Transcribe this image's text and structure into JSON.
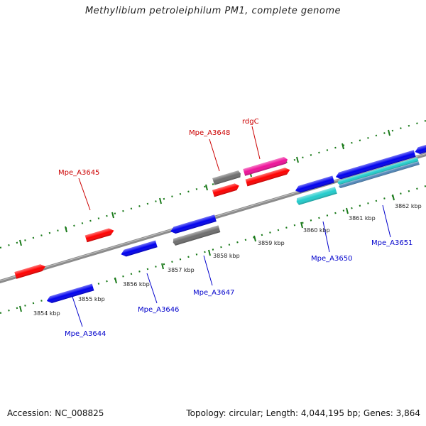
{
  "title": "Methylibium petroleiphilum PM1, complete genome",
  "footer": {
    "accession": "Accession: NC_008825",
    "topology": "Topology: circular; Length: 4,044,195 bp; Genes: 3,864"
  },
  "colors": {
    "backbone": "#8c8c8c",
    "forward_label": "#cc0000",
    "reverse_label": "#0000cc",
    "tick": "#1a7a1a",
    "gene_red": "#ff0000",
    "gene_blue": "#0000ee",
    "gene_gray": "#6e6e6e",
    "gene_magenta": "#ee1199",
    "gene_cyan": "#22cccc",
    "gene_steel": "#4f86b8"
  },
  "ticks": [
    "3854 kbp",
    "3855 kbp",
    "3856 kbp",
    "3857 kbp",
    "3858 kbp",
    "3859 kbp",
    "3860 kbp",
    "3861 kbp",
    "3862 kbp"
  ],
  "gene_labels": [
    "Mpe_A3645",
    "Mpe_A3648",
    "rdgC",
    "Mpe_A3644",
    "Mpe_A3646",
    "Mpe_A3647",
    "Mpe_A3650",
    "Mpe_A3651"
  ]
}
